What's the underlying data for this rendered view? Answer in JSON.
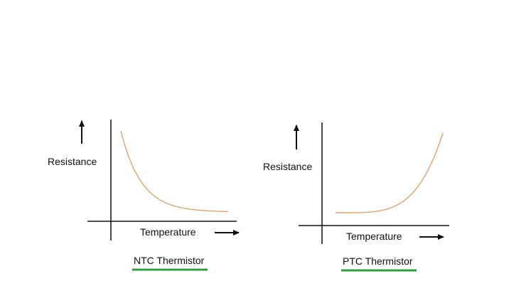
{
  "colors": {
    "background": "#ffffff",
    "axis": "#111111",
    "curve": "#e0a36c",
    "underline": "#2e9e3e"
  },
  "ntc": {
    "ylabel": "Resistance",
    "xlabel": "Temperature",
    "caption": "NTC Thermistor",
    "trend": "decreasing"
  },
  "ptc": {
    "ylabel": "Resistance",
    "xlabel": "Temperature",
    "caption": "PTC Thermistor",
    "trend": "increasing"
  }
}
